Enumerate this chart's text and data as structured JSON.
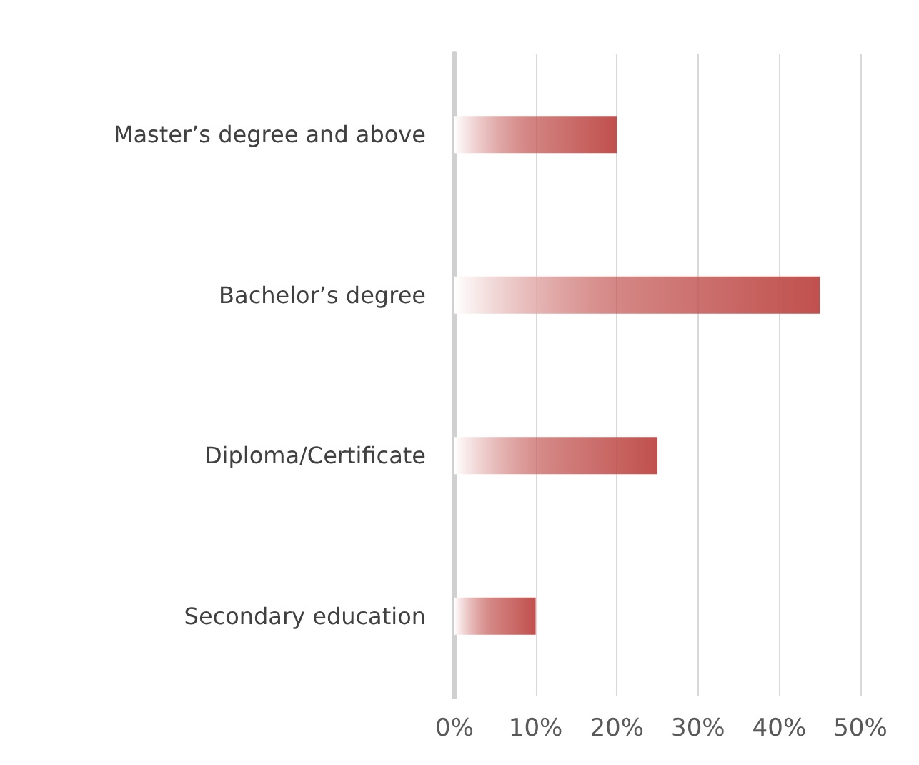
{
  "chart_data": {
    "type": "bar",
    "orientation": "horizontal",
    "categories": [
      "Master’s degree and above",
      "Bachelor’s degree",
      "Diploma/Certificate",
      "Secondary education"
    ],
    "values": [
      20,
      45,
      25,
      10
    ],
    "color": "#c0504d",
    "xlim": [
      0,
      50
    ],
    "xticks": [
      {
        "value": 0,
        "label": "0%"
      },
      {
        "value": 10,
        "label": "10%"
      },
      {
        "value": 20,
        "label": "20%"
      },
      {
        "value": 30,
        "label": "30%"
      },
      {
        "value": 40,
        "label": "40%"
      },
      {
        "value": 50,
        "label": "50%"
      }
    ],
    "grid": "x"
  }
}
